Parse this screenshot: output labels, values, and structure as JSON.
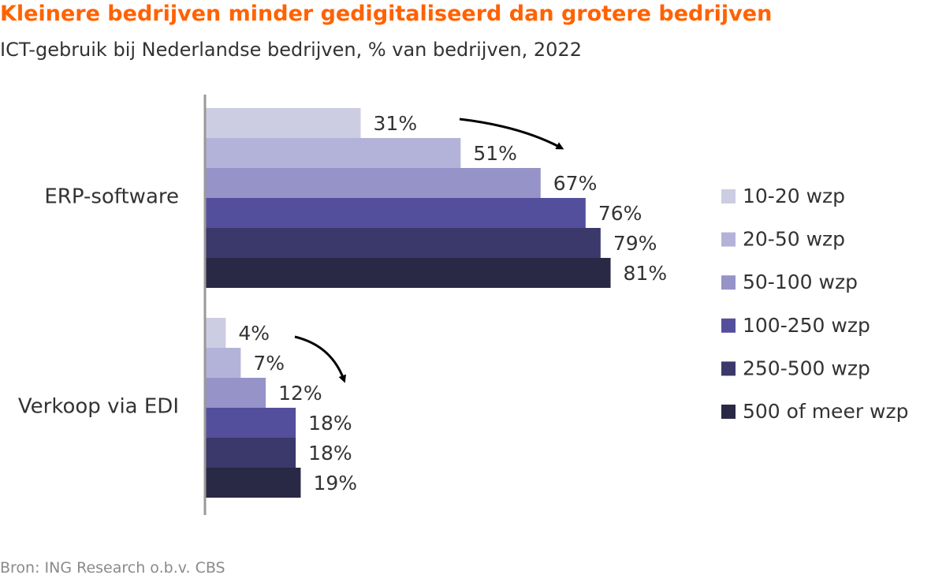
{
  "header": {
    "title": "Kleinere bedrijven minder gedigitaliseerd dan grotere bedrijven",
    "subtitle": "ICT-gebruik bij Nederlandse bedrijven, % van bedrijven, 2022"
  },
  "footer": {
    "source": "Bron: ING Research o.b.v. CBS"
  },
  "chart_data": {
    "type": "bar",
    "orientation": "horizontal",
    "categories": [
      "ERP-software",
      "Verkoop via EDI"
    ],
    "series": [
      {
        "name": "10-20 wzp",
        "values": [
          31,
          4
        ],
        "color": "#cccce2"
      },
      {
        "name": "20-50 wzp",
        "values": [
          51,
          7
        ],
        "color": "#b3b3d9"
      },
      {
        "name": "50-100 wzp",
        "values": [
          67,
          12
        ],
        "color": "#9593c8"
      },
      {
        "name": "100-250 wzp",
        "values": [
          76,
          18
        ],
        "color": "#544f9c"
      },
      {
        "name": "250-500 wzp",
        "values": [
          79,
          18
        ],
        "color": "#3b386b"
      },
      {
        "name": "500 of meer wzp",
        "values": [
          81,
          19
        ],
        "color": "#292845"
      }
    ],
    "value_suffix": "%",
    "xlim": [
      0,
      100
    ],
    "grid": false,
    "legend_position": "right",
    "annotations": [
      "arrow indicating increase with company size"
    ]
  }
}
